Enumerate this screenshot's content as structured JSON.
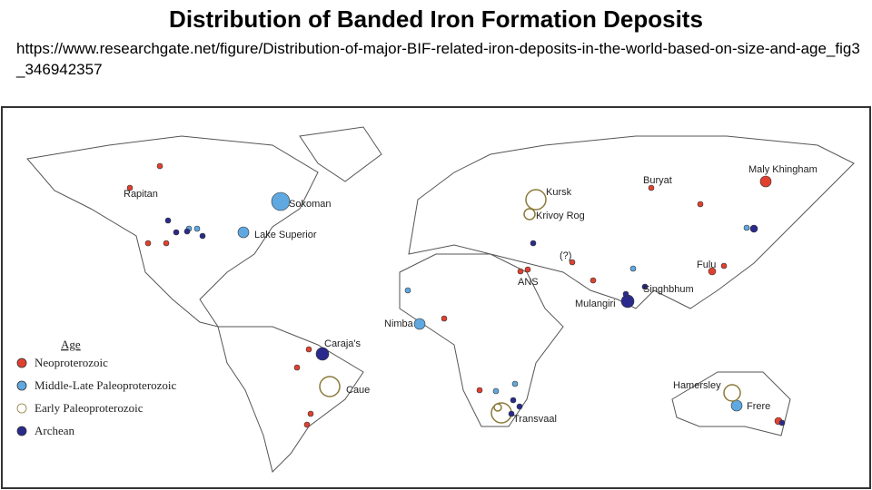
{
  "header": {
    "title": "Distribution of Banded Iron Formation Deposits",
    "source": "https://www.researchgate.net/figure/Distribution-of-major-BIF-related-iron-deposits-in-the-world-based-on-size-and-age_fig3_346942357"
  },
  "legend": {
    "title": "Age",
    "items": [
      {
        "label": "Neoproterozoic",
        "color": "#e0412f"
      },
      {
        "label": "Middle-Late Paleoproterozoic",
        "color": "#5fa8e0"
      },
      {
        "label": "Early Paleoproterozoic",
        "color": "#ffffff"
      },
      {
        "label": "Archean",
        "color": "#2a2a8c"
      }
    ]
  },
  "labels": [
    "Rapitan",
    "Sokoman",
    "Lake Superior",
    "Kursk",
    "Krivoy Rog",
    "Maly Khingham",
    "Buryat",
    "(?)",
    "ANS",
    "Fulu",
    "Singhbhum",
    "Mulangiri",
    "Nimba",
    "Caraja's",
    "Caue",
    "Transvaal",
    "Hamersley",
    "Frere"
  ]
}
